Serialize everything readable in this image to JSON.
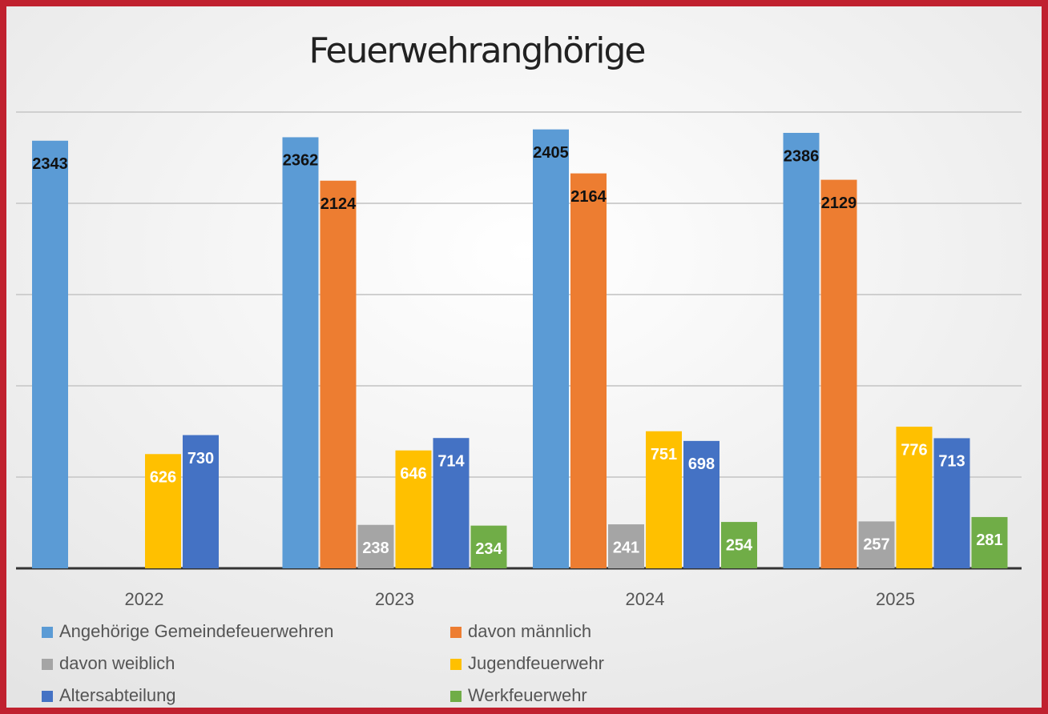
{
  "chart_data": {
    "type": "bar",
    "title": "Feuerwehranghörige",
    "categories": [
      "2022",
      "2023",
      "2024",
      "2025"
    ],
    "series": [
      {
        "name": "Angehörige Gemeindefeuerwehren",
        "color": "#5b9bd5",
        "values": [
          2343,
          2362,
          2405,
          2386
        ]
      },
      {
        "name": "davon männlich",
        "color": "#ed7d31",
        "values": [
          null,
          2124,
          2164,
          2129
        ]
      },
      {
        "name": "davon weiblich",
        "color": "#a5a5a5",
        "values": [
          null,
          238,
          241,
          257
        ]
      },
      {
        "name": "Jugendfeuerwehr",
        "color": "#ffc000",
        "values": [
          626,
          646,
          751,
          776
        ]
      },
      {
        "name": "Altersabteilung",
        "color": "#4472c4",
        "values": [
          730,
          714,
          698,
          713
        ]
      },
      {
        "name": "Werkfeuerwehr",
        "color": "#70ad47",
        "values": [
          null,
          234,
          254,
          281
        ]
      }
    ],
    "ylim": [
      0,
      2500
    ],
    "yticks": [
      0,
      500,
      1000,
      1500,
      2000,
      2500
    ],
    "grid": true
  }
}
